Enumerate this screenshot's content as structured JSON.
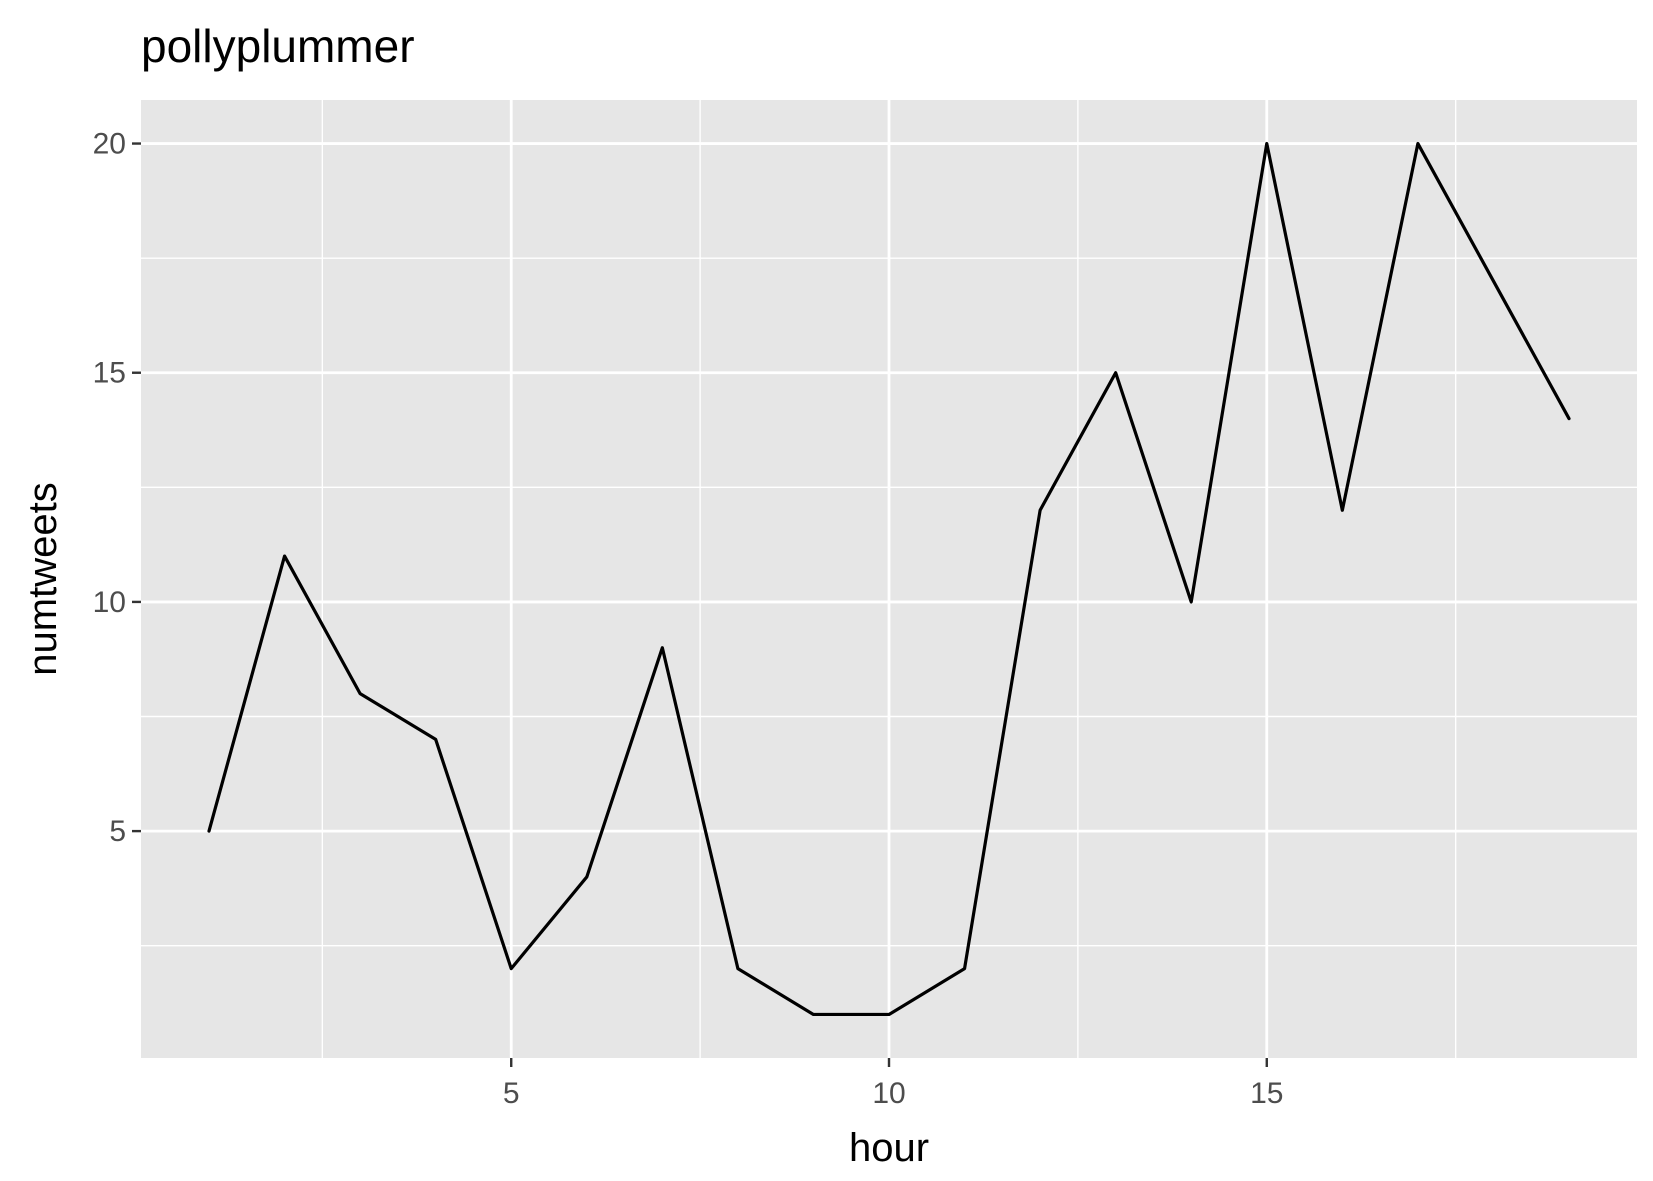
{
  "chart_data": {
    "type": "line",
    "title": "pollyplummer",
    "xlabel": "hour",
    "ylabel": "numtweets",
    "x": [
      1,
      2,
      3,
      4,
      5,
      6,
      7,
      8,
      9,
      10,
      11,
      12,
      13,
      14,
      15,
      16,
      17,
      18,
      19
    ],
    "series": [
      {
        "values": [
          5,
          11,
          8,
          7,
          2,
          4,
          9,
          2,
          1,
          1,
          2,
          12,
          15,
          10,
          20,
          12,
          20,
          17,
          14
        ]
      }
    ],
    "xlim": [
      0.1,
      19.9
    ],
    "ylim": [
      0.05,
      20.95
    ],
    "x_ticks": [
      5,
      10,
      15
    ],
    "x_tick_labels": [
      "5",
      "10",
      "15"
    ],
    "y_ticks": [
      5,
      10,
      15,
      20
    ],
    "y_tick_labels": [
      "5",
      "10",
      "15",
      "20"
    ],
    "x_minor_ticks": [
      2.5,
      7.5,
      12.5,
      17.5
    ],
    "y_minor_ticks": [
      2.5,
      7.5,
      12.5,
      17.5
    ],
    "grid": true,
    "legend": "none",
    "colors": {
      "panel": "#e6e6e6",
      "grid": "#ffffff",
      "line": "#000000",
      "tick_text": "#4d4d4d"
    }
  }
}
